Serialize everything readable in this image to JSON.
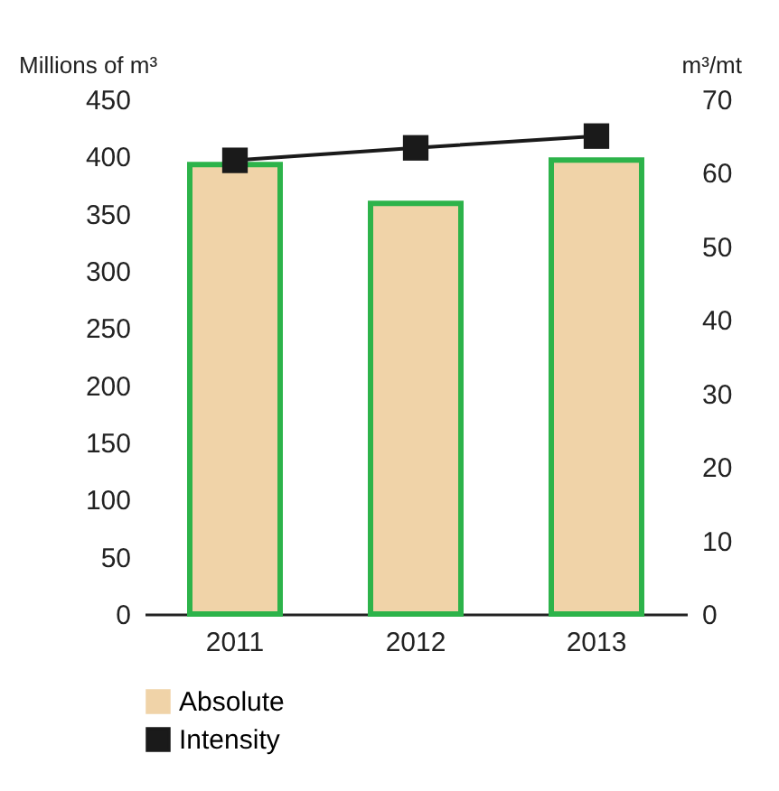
{
  "chart_data": {
    "type": "bar",
    "categories": [
      "2011",
      "2012",
      "2013"
    ],
    "ylabel": "Millions of m³",
    "y2label": "m³/mt",
    "series": [
      {
        "name": "Absolute",
        "color": "#f0d3a8",
        "values": [
          393,
          359,
          397
        ]
      },
      {
        "name": "Intensity",
        "type": "line",
        "axis": "y2",
        "color": "#1a1a1a",
        "values": [
          61.7,
          63.4,
          65.0
        ]
      }
    ],
    "ylim": [
      0,
      450
    ],
    "yticks": [
      0,
      50,
      100,
      150,
      200,
      250,
      300,
      350,
      400,
      450
    ],
    "y2lim": [
      0,
      70
    ],
    "y2ticks": [
      0,
      10,
      20,
      30,
      40,
      50,
      60,
      70
    ],
    "marker": "square",
    "grid": false,
    "legend": "bottom"
  }
}
